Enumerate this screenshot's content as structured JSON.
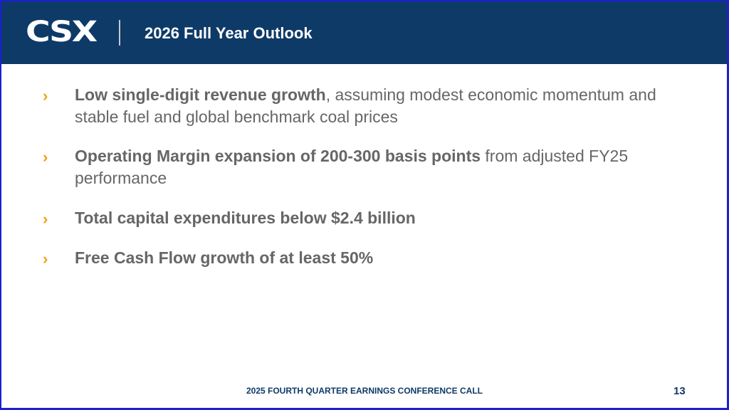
{
  "header": {
    "logo_text": "CSX",
    "title": "2026 Full Year Outlook",
    "background_color": "#0e3a68"
  },
  "bullets": [
    {
      "bold": "Low single-digit revenue growth",
      "rest": ", assuming modest economic momentum and stable fuel and global benchmark coal prices"
    },
    {
      "bold": "Operating Margin expansion of 200-300 basis points",
      "rest": " from adjusted FY25 performance"
    },
    {
      "bold": "Total capital expenditures below $2.4 billion",
      "rest": ""
    },
    {
      "bold": "Free Cash Flow growth of at least 50%",
      "rest": ""
    }
  ],
  "bullet_marker": "›",
  "bullet_color": "#f5a011",
  "footer": {
    "text": "2025 FOURTH QUARTER EARNINGS CONFERENCE CALL",
    "page_number": "13"
  }
}
